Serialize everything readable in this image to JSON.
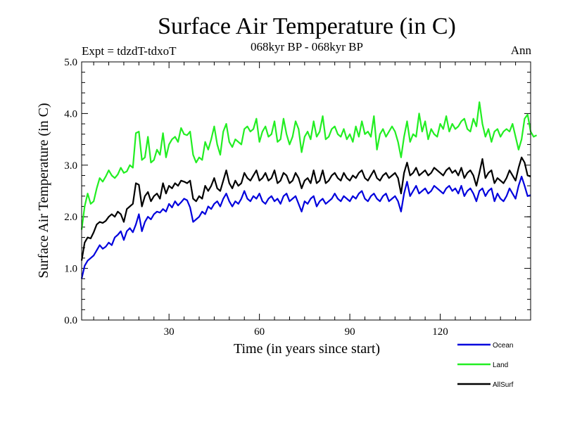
{
  "chart_data": {
    "type": "line",
    "title": "Surface Air Temperature (in C)",
    "subtitle": "068kyr BP - 068kyr BP",
    "expt_label": "Expt = tdzdT-tdxoT",
    "period_label": "Ann",
    "xlabel": "Time (in years since start)",
    "ylabel": "Surface Air Temperature (in C)",
    "xlim": [
      1,
      150
    ],
    "ylim": [
      0,
      5
    ],
    "xticks": [
      30,
      60,
      90,
      120
    ],
    "yticks": [
      0,
      1,
      2,
      3,
      4,
      5
    ],
    "ytick_labels": [
      "0.0",
      "1.0",
      "2.0",
      "3.0",
      "4.0",
      "5.0"
    ],
    "grid": false,
    "legend_position": "bottom-right",
    "series": [
      {
        "name": "Ocean",
        "color": "#0000dd",
        "start_year": 1,
        "values": [
          0.8,
          1.05,
          1.15,
          1.2,
          1.25,
          1.35,
          1.45,
          1.38,
          1.42,
          1.5,
          1.45,
          1.6,
          1.65,
          1.72,
          1.55,
          1.72,
          1.78,
          1.7,
          1.85,
          2.05,
          1.72,
          1.9,
          2.0,
          1.95,
          2.05,
          2.1,
          2.08,
          2.15,
          2.1,
          2.25,
          2.18,
          2.3,
          2.22,
          2.28,
          2.35,
          2.32,
          2.18,
          1.9,
          1.95,
          2.0,
          2.1,
          2.05,
          2.2,
          2.15,
          2.25,
          2.3,
          2.2,
          2.35,
          2.45,
          2.3,
          2.2,
          2.3,
          2.25,
          2.35,
          2.5,
          2.35,
          2.3,
          2.4,
          2.35,
          2.45,
          2.3,
          2.25,
          2.35,
          2.4,
          2.3,
          2.35,
          2.25,
          2.4,
          2.45,
          2.3,
          2.35,
          2.4,
          2.25,
          2.1,
          2.3,
          2.25,
          2.35,
          2.4,
          2.2,
          2.3,
          2.35,
          2.25,
          2.3,
          2.35,
          2.45,
          2.35,
          2.3,
          2.4,
          2.35,
          2.3,
          2.4,
          2.35,
          2.45,
          2.5,
          2.35,
          2.3,
          2.4,
          2.45,
          2.35,
          2.3,
          2.4,
          2.45,
          2.3,
          2.35,
          2.4,
          2.3,
          2.1,
          2.45,
          2.68,
          2.4,
          2.5,
          2.6,
          2.45,
          2.5,
          2.55,
          2.45,
          2.5,
          2.6,
          2.55,
          2.5,
          2.45,
          2.55,
          2.6,
          2.5,
          2.55,
          2.45,
          2.6,
          2.4,
          2.5,
          2.55,
          2.45,
          2.3,
          2.5,
          2.55,
          2.4,
          2.5,
          2.55,
          2.3,
          2.45,
          2.35,
          2.3,
          2.4,
          2.55,
          2.45,
          2.35,
          2.6,
          2.78,
          2.6,
          2.4,
          2.42
        ]
      },
      {
        "name": "Land",
        "color": "#22ee22",
        "start_year": 1,
        "values": [
          1.75,
          2.2,
          2.45,
          2.25,
          2.3,
          2.55,
          2.75,
          2.68,
          2.78,
          2.9,
          2.8,
          2.75,
          2.82,
          2.95,
          2.85,
          2.88,
          3.0,
          2.95,
          3.62,
          3.65,
          3.1,
          3.15,
          3.55,
          3.05,
          3.1,
          3.3,
          3.2,
          3.62,
          3.15,
          3.4,
          3.5,
          3.55,
          3.45,
          3.72,
          3.6,
          3.58,
          3.65,
          3.2,
          3.05,
          3.15,
          3.1,
          3.45,
          3.3,
          3.5,
          3.75,
          3.4,
          3.2,
          3.65,
          3.8,
          3.45,
          3.35,
          3.5,
          3.45,
          3.4,
          3.7,
          3.75,
          3.65,
          3.7,
          3.9,
          3.45,
          3.65,
          3.75,
          3.55,
          3.6,
          3.85,
          3.45,
          3.5,
          3.9,
          3.6,
          3.4,
          3.55,
          3.85,
          3.7,
          3.25,
          3.55,
          3.65,
          3.5,
          3.85,
          3.55,
          3.65,
          3.95,
          3.5,
          3.55,
          3.7,
          3.75,
          3.6,
          3.55,
          3.7,
          3.5,
          3.6,
          3.45,
          3.75,
          3.55,
          3.85,
          3.6,
          3.65,
          3.55,
          3.95,
          3.3,
          3.6,
          3.7,
          3.55,
          3.65,
          3.75,
          3.65,
          3.45,
          3.15,
          3.55,
          3.85,
          3.45,
          3.6,
          3.55,
          4.0,
          3.65,
          3.85,
          3.5,
          3.7,
          3.6,
          3.55,
          3.8,
          3.7,
          3.95,
          3.65,
          3.8,
          3.7,
          3.75,
          3.85,
          3.9,
          3.7,
          3.65,
          3.9,
          3.75,
          4.22,
          3.8,
          3.55,
          3.7,
          3.45,
          3.65,
          3.7,
          3.55,
          3.65,
          3.7,
          3.65,
          3.8,
          3.55,
          3.3,
          3.5,
          3.9,
          3.98,
          3.65,
          3.55,
          3.58
        ]
      },
      {
        "name": "AllSurf",
        "color": "#000000",
        "start_year": 1,
        "values": [
          1.15,
          1.5,
          1.6,
          1.58,
          1.7,
          1.85,
          1.9,
          1.88,
          1.92,
          2.0,
          2.05,
          2.0,
          2.1,
          2.05,
          1.9,
          2.15,
          2.2,
          2.25,
          2.65,
          2.62,
          2.2,
          2.4,
          2.48,
          2.3,
          2.4,
          2.45,
          2.35,
          2.65,
          2.45,
          2.6,
          2.55,
          2.65,
          2.6,
          2.7,
          2.68,
          2.65,
          2.7,
          2.35,
          2.3,
          2.4,
          2.35,
          2.6,
          2.5,
          2.6,
          2.75,
          2.55,
          2.5,
          2.7,
          2.9,
          2.65,
          2.55,
          2.7,
          2.6,
          2.65,
          2.85,
          2.75,
          2.7,
          2.8,
          2.9,
          2.7,
          2.75,
          2.85,
          2.7,
          2.75,
          2.9,
          2.65,
          2.7,
          2.85,
          2.8,
          2.65,
          2.7,
          2.85,
          2.75,
          2.55,
          2.7,
          2.75,
          2.65,
          2.9,
          2.65,
          2.7,
          2.9,
          2.65,
          2.7,
          2.8,
          2.85,
          2.75,
          2.7,
          2.85,
          2.75,
          2.7,
          2.8,
          2.75,
          2.85,
          2.9,
          2.75,
          2.7,
          2.8,
          2.9,
          2.75,
          2.7,
          2.8,
          2.85,
          2.75,
          2.8,
          2.85,
          2.75,
          2.45,
          2.85,
          3.05,
          2.8,
          2.85,
          2.95,
          2.8,
          2.85,
          2.9,
          2.8,
          2.85,
          2.95,
          2.9,
          2.85,
          2.8,
          2.9,
          2.95,
          2.85,
          2.9,
          2.8,
          2.95,
          2.75,
          2.85,
          2.9,
          2.8,
          2.6,
          2.85,
          3.12,
          2.75,
          2.85,
          2.9,
          2.65,
          2.75,
          2.7,
          2.65,
          2.75,
          2.9,
          2.8,
          2.7,
          2.95,
          3.15,
          3.05,
          2.8,
          2.78
        ]
      }
    ]
  }
}
